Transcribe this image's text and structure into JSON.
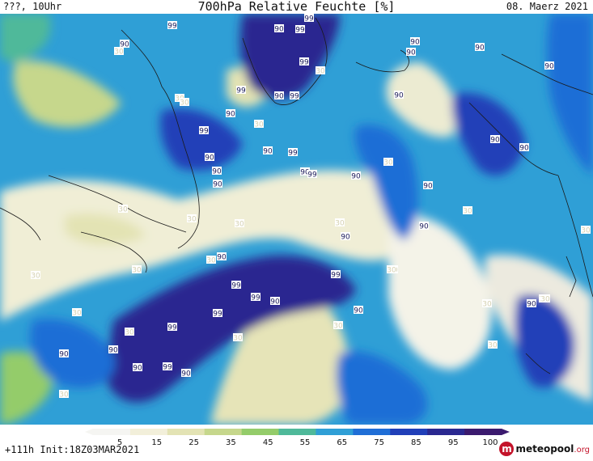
{
  "header": {
    "left": "???, 10Uhr",
    "title": "700hPa Relative Feuchte [%]",
    "date": "08. Maerz 2021"
  },
  "footer": {
    "run_info": "+111h Init:18Z03MAR2021",
    "logo_main": "meteopool",
    "logo_tld": ".org"
  },
  "legend": {
    "ticks": [
      "5",
      "15",
      "25",
      "35",
      "45",
      "55",
      "65",
      "75",
      "85",
      "95",
      "100"
    ],
    "colors": [
      "#f5f5f2",
      "#f2efda",
      "#e3e3b4",
      "#c6d78c",
      "#94cc6a",
      "#4fb99a",
      "#2f9fd6",
      "#1f6ed6",
      "#203fb8",
      "#2a2890",
      "#3b1a6e"
    ]
  },
  "map_labels": [
    {
      "v": "99"
    },
    {
      "v": "99"
    },
    {
      "v": "90"
    },
    {
      "v": "99"
    },
    {
      "v": "90"
    },
    {
      "v": "90"
    },
    {
      "v": "90"
    },
    {
      "v": "30"
    },
    {
      "v": "99"
    },
    {
      "v": "30"
    },
    {
      "v": "90"
    },
    {
      "v": "90"
    },
    {
      "v": "99"
    },
    {
      "v": "30"
    },
    {
      "v": "90"
    },
    {
      "v": "30"
    },
    {
      "v": "90"
    },
    {
      "v": "99"
    },
    {
      "v": "90"
    },
    {
      "v": "30"
    },
    {
      "v": "99"
    },
    {
      "v": "90"
    },
    {
      "v": "99"
    },
    {
      "v": "90"
    },
    {
      "v": "90"
    },
    {
      "v": "90"
    },
    {
      "v": "99"
    },
    {
      "v": "90"
    },
    {
      "v": "90"
    },
    {
      "v": "30"
    },
    {
      "v": "90"
    },
    {
      "v": "90"
    },
    {
      "v": "90"
    },
    {
      "v": "30"
    },
    {
      "v": "30"
    },
    {
      "v": "90"
    },
    {
      "v": "30"
    },
    {
      "v": "30"
    },
    {
      "v": "30"
    },
    {
      "v": "90"
    },
    {
      "v": "30"
    },
    {
      "v": "30"
    },
    {
      "v": "90"
    },
    {
      "v": "30"
    },
    {
      "v": "30"
    },
    {
      "v": "99"
    },
    {
      "v": "99"
    },
    {
      "v": "99"
    },
    {
      "v": "90"
    },
    {
      "v": "90"
    },
    {
      "v": "30"
    },
    {
      "v": "30"
    },
    {
      "v": "99"
    },
    {
      "v": "30"
    },
    {
      "v": "30"
    },
    {
      "v": "90"
    },
    {
      "v": "99"
    },
    {
      "v": "99"
    },
    {
      "v": "90"
    },
    {
      "v": "90"
    },
    {
      "v": "30"
    },
    {
      "v": "90"
    },
    {
      "v": "30"
    },
    {
      "v": "30"
    },
    {
      "v": "30"
    },
    {
      "v": "90"
    },
    {
      "v": "30"
    },
    {
      "v": "30"
    },
    {
      "v": "30"
    }
  ]
}
